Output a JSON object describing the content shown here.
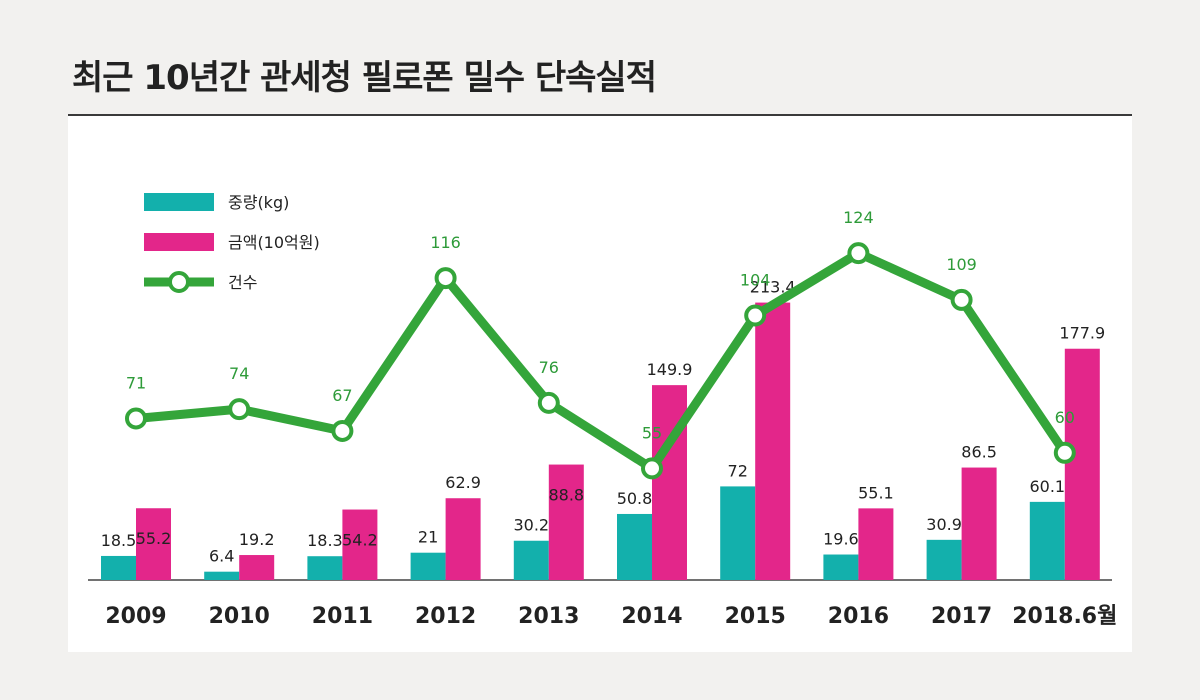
{
  "title": "최근 10년간 관세청 필로폰 밀수 단속실적",
  "colors": {
    "weight": "#13b0ac",
    "amount": "#e3268a",
    "count": "#34a53a",
    "highlight_tick": "#d9232a"
  },
  "chart_data": {
    "type": "bar",
    "title": "최근 10년간 관세청 필로폰 밀수 단속실적",
    "categories": [
      "2009",
      "2010",
      "2011",
      "2012",
      "2013",
      "2014",
      "2015",
      "2016",
      "2017",
      "2018.6월"
    ],
    "highlight_category": "2018.6월",
    "series": [
      {
        "name": "중량(kg)",
        "kind": "bar",
        "values": [
          18.5,
          6.4,
          18.3,
          21,
          30.2,
          50.8,
          72,
          19.6,
          30.9,
          60.1
        ]
      },
      {
        "name": "금액(10억원)",
        "kind": "bar",
        "values": [
          55.2,
          19.2,
          54.2,
          62.9,
          88.8,
          149.9,
          213.4,
          55.1,
          86.5,
          177.9
        ]
      },
      {
        "name": "건수",
        "kind": "line",
        "values": [
          71,
          74,
          67,
          116,
          76,
          55,
          104,
          124,
          109,
          60
        ]
      }
    ],
    "legend_position": "top-left",
    "grid": false
  }
}
